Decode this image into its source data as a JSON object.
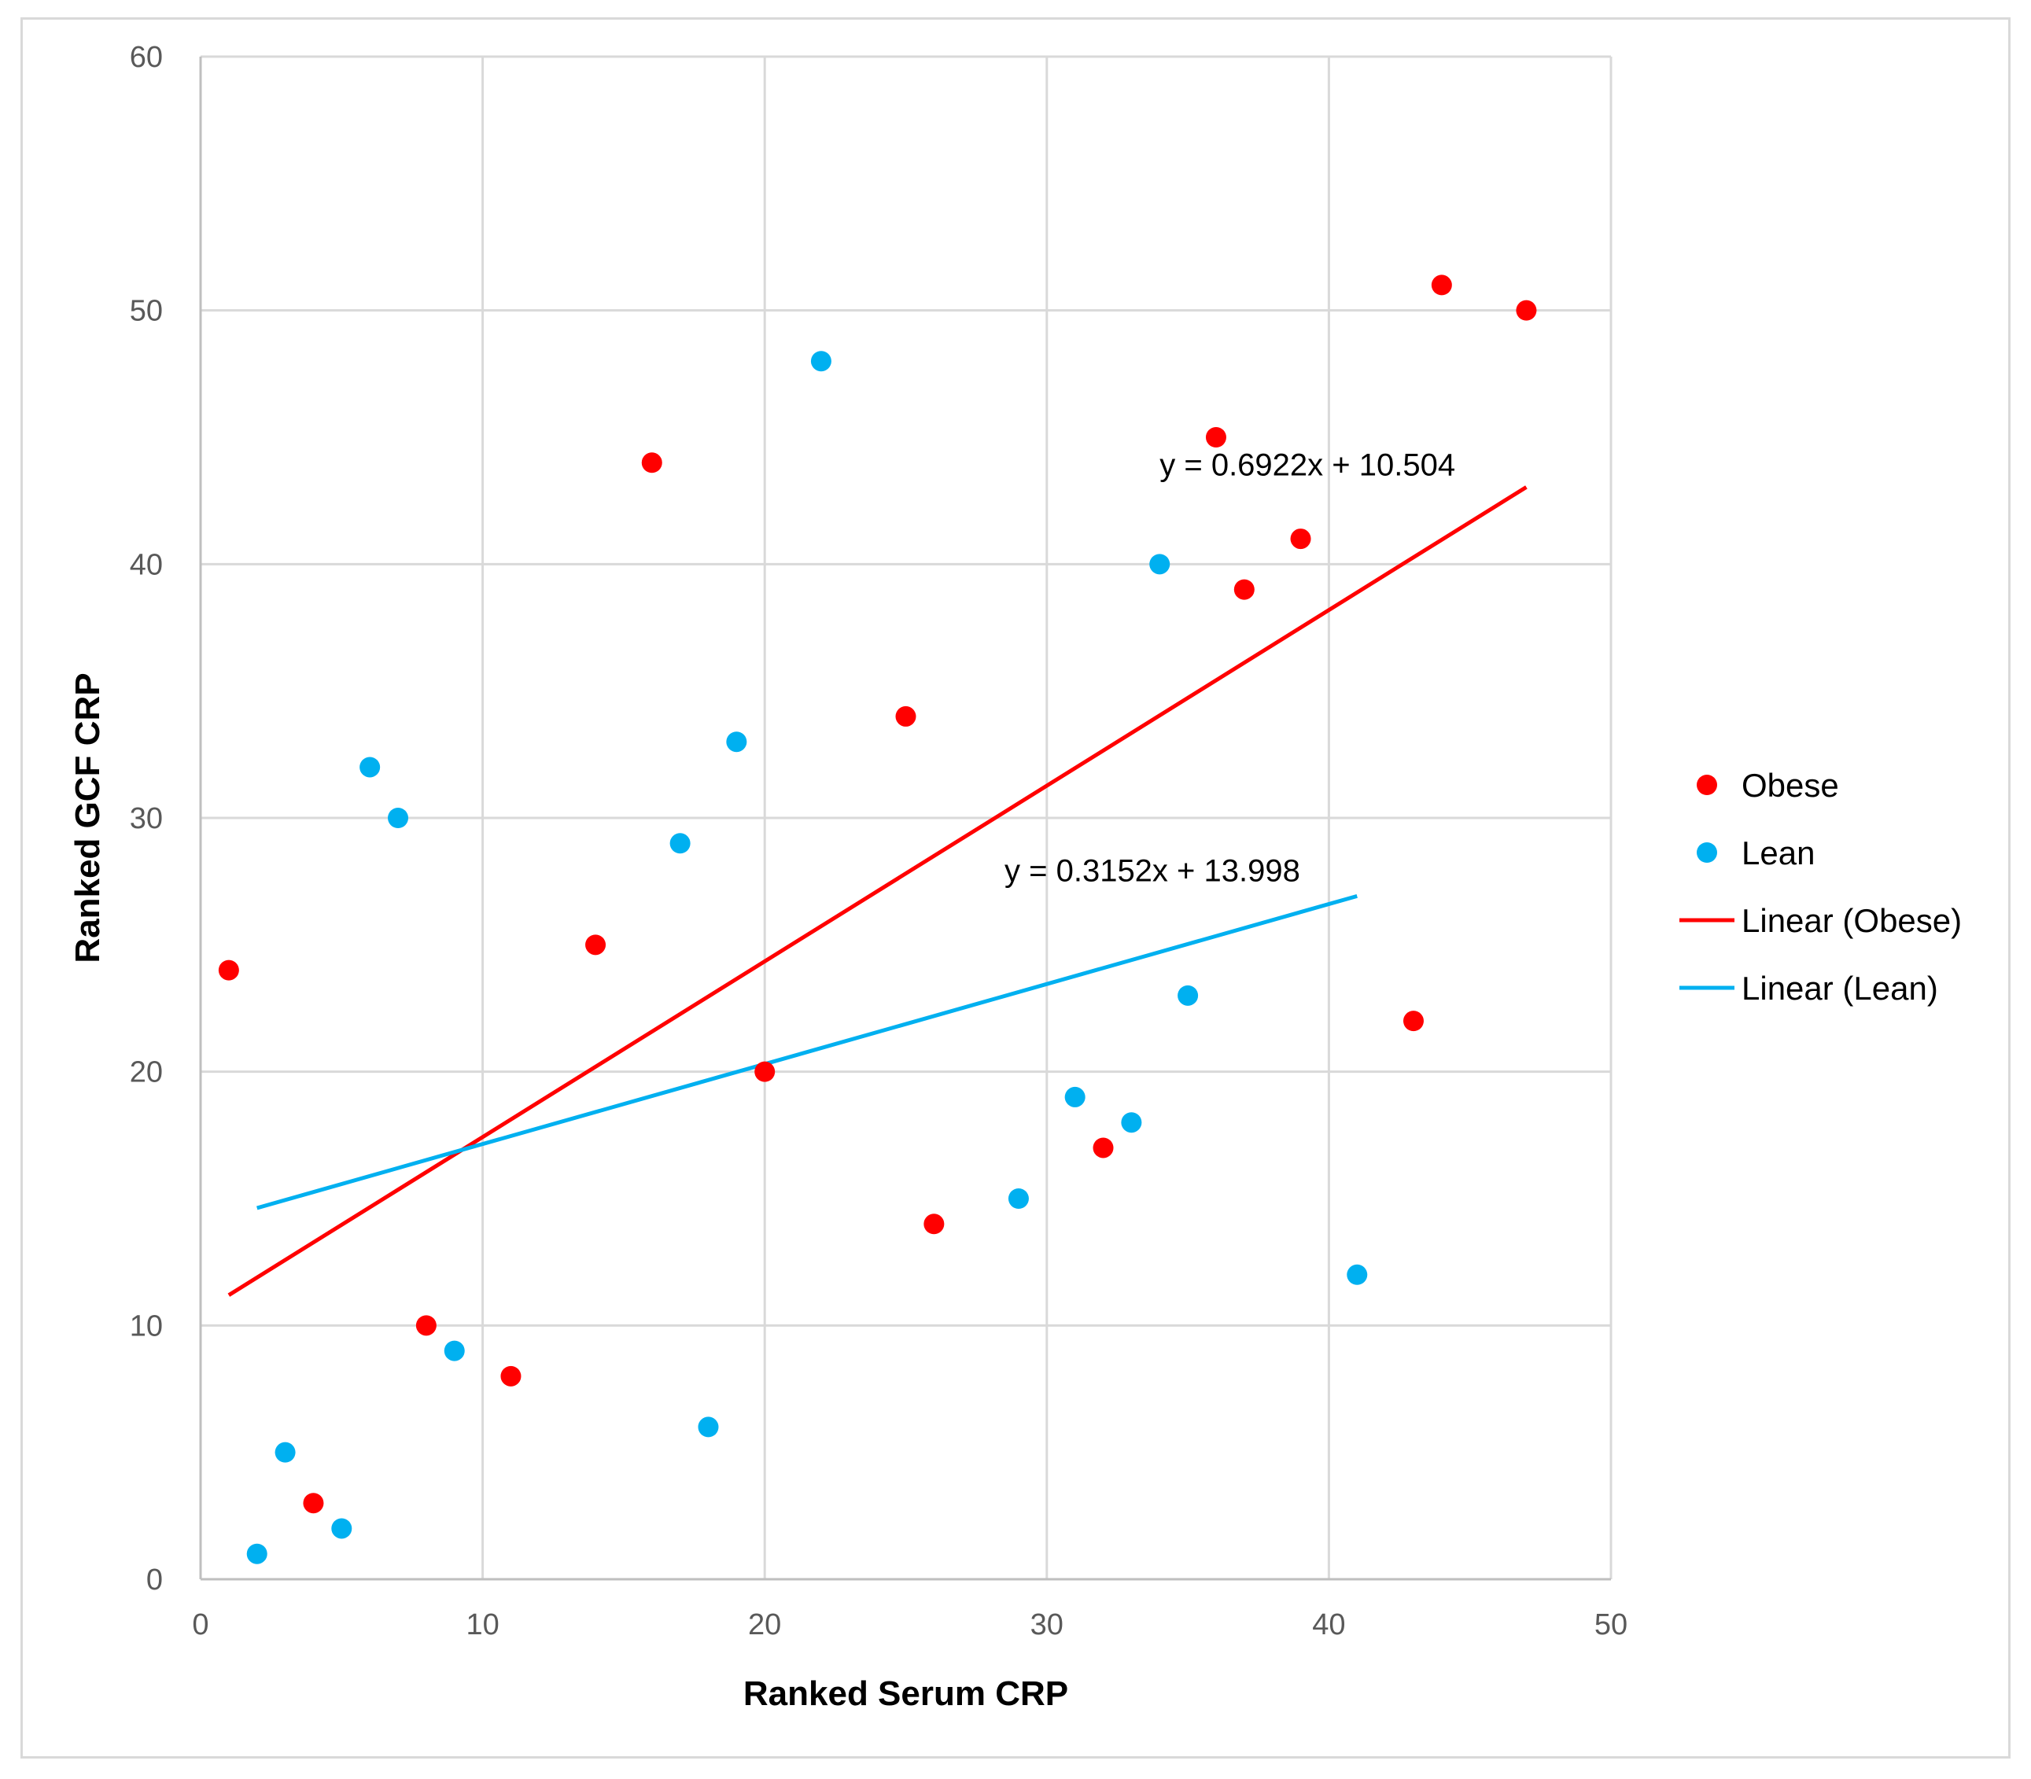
{
  "chart_data": {
    "type": "scatter",
    "title": "",
    "xlabel": "Ranked Serum CRP",
    "ylabel": "Ranked GCF CRP",
    "xlim": [
      0,
      50
    ],
    "ylim": [
      0,
      60
    ],
    "x_ticks": [
      0,
      10,
      20,
      30,
      40,
      50
    ],
    "y_ticks": [
      0,
      10,
      20,
      30,
      40,
      50,
      60
    ],
    "grid": true,
    "legend_position": "right",
    "series": [
      {
        "name": "Obese",
        "color": "#ff0000",
        "points": [
          [
            1,
            24
          ],
          [
            4,
            3
          ],
          [
            8,
            10
          ],
          [
            11,
            8
          ],
          [
            14,
            25
          ],
          [
            16,
            44
          ],
          [
            20,
            20
          ],
          [
            25,
            34
          ],
          [
            26,
            14
          ],
          [
            32,
            17
          ],
          [
            36,
            45
          ],
          [
            37,
            39
          ],
          [
            39,
            41
          ],
          [
            43,
            22
          ],
          [
            44,
            51
          ],
          [
            47,
            50
          ]
        ]
      },
      {
        "name": "Lean",
        "color": "#00b0f0",
        "points": [
          [
            2,
            1
          ],
          [
            3,
            5
          ],
          [
            5,
            2
          ],
          [
            6,
            32
          ],
          [
            7,
            30
          ],
          [
            9,
            9
          ],
          [
            17,
            29
          ],
          [
            18,
            6
          ],
          [
            19,
            33
          ],
          [
            22,
            48
          ],
          [
            29,
            15
          ],
          [
            31,
            19
          ],
          [
            33,
            18
          ],
          [
            34,
            40
          ],
          [
            35,
            23
          ],
          [
            41,
            12
          ]
        ]
      }
    ],
    "trendlines": [
      {
        "name": "Linear (Obese)",
        "color": "#ff0000",
        "slope": 0.6922,
        "intercept": 10.504,
        "x_range": [
          1,
          47
        ],
        "equation": "y = 0.6922x + 10.504",
        "label_anchor": [
          34,
          43.5
        ]
      },
      {
        "name": "Linear (Lean)",
        "color": "#00b0f0",
        "slope": 0.3152,
        "intercept": 13.998,
        "x_range": [
          2,
          41
        ],
        "equation": "y = 0.3152x + 13.998",
        "label_anchor": [
          28.5,
          27.5
        ]
      }
    ],
    "legend": [
      "Obese",
      "Lean",
      "Linear (Obese)",
      "Linear (Lean)"
    ]
  }
}
